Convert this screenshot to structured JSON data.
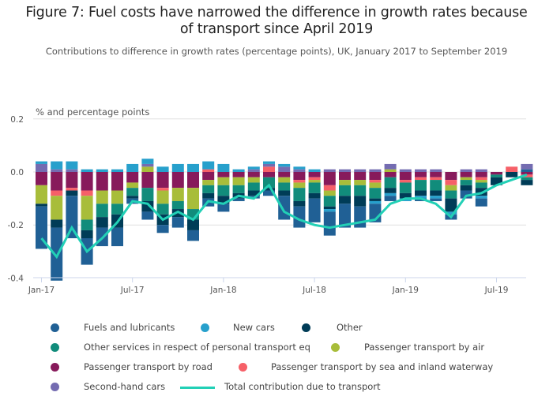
{
  "header": {
    "title_line1": "Figure 7: Fuel costs have narrowed the difference in growth rates because",
    "title_line2": "of transport since April 2019",
    "subtitle": "Contributions to difference in growth rates (percentage points), UK, January 2017 to September 2019"
  },
  "chart_data": {
    "type": "bar",
    "stacked": true,
    "title": "Figure 7: Fuel costs have narrowed the difference in growth rates because of transport since April 2019",
    "subtitle": "Contributions to difference in growth rates (percentage points), UK, January 2017 to September 2019",
    "ylabel": "% and percentage points",
    "xlabel": "",
    "ylim": [
      -0.4,
      0.2
    ],
    "yticks": [
      0.2,
      0.0,
      -0.2,
      -0.4
    ],
    "ytick_labels": [
      "0.2",
      "0.0",
      "-0.2",
      "-0.4"
    ],
    "grid": true,
    "legend_position": "bottom",
    "categories": [
      "Jan-17",
      "Feb-17",
      "Mar-17",
      "Apr-17",
      "May-17",
      "Jun-17",
      "Jul-17",
      "Aug-17",
      "Sep-17",
      "Oct-17",
      "Nov-17",
      "Dec-17",
      "Jan-18",
      "Feb-18",
      "Mar-18",
      "Apr-18",
      "May-18",
      "Jun-18",
      "Jul-18",
      "Aug-18",
      "Sep-18",
      "Oct-18",
      "Nov-18",
      "Dec-18",
      "Jan-19",
      "Feb-19",
      "Mar-19",
      "Apr-19",
      "May-19",
      "Jun-19",
      "Jul-19",
      "Aug-19",
      "Sep-19"
    ],
    "xtick_labels": [
      {
        "index": 0,
        "label": "Jan-17"
      },
      {
        "index": 6,
        "label": "Jul-17"
      },
      {
        "index": 12,
        "label": "Jan-18"
      },
      {
        "index": 18,
        "label": "Jul-18"
      },
      {
        "index": 24,
        "label": "Jan-19"
      },
      {
        "index": 30,
        "label": "Jul-19"
      }
    ],
    "series": [
      {
        "name": "Fuels and lubricants",
        "color": "#206095",
        "kind": "bar",
        "values": [
          -0.16,
          -0.2,
          -0.16,
          -0.1,
          -0.07,
          -0.07,
          -0.02,
          -0.03,
          -0.03,
          -0.04,
          -0.04,
          -0.03,
          -0.03,
          -0.01,
          -0.01,
          -0.02,
          -0.09,
          -0.08,
          -0.09,
          -0.09,
          -0.09,
          -0.08,
          -0.07,
          -0.02,
          0,
          -0.01,
          -0.01,
          -0.02,
          -0.03,
          -0.03,
          0,
          0,
          0.01
        ]
      },
      {
        "name": "New cars",
        "color": "#27a0cc",
        "kind": "bar",
        "values": [
          0.01,
          0.03,
          0.03,
          0.01,
          0.01,
          0.01,
          0.03,
          0.02,
          0.02,
          0.03,
          0.03,
          0.03,
          0.03,
          0.01,
          0.01,
          0.01,
          0.01,
          0.01,
          0.01,
          -0.01,
          0,
          0,
          -0.01,
          -0.01,
          -0.01,
          -0.01,
          -0.01,
          -0.01,
          0,
          -0.01,
          0,
          0,
          0
        ]
      },
      {
        "name": "Other",
        "color": "#003c57",
        "kind": "bar",
        "values": [
          -0.01,
          -0.03,
          -0.02,
          -0.03,
          -0.04,
          -0.05,
          -0.01,
          -0.04,
          -0.04,
          -0.03,
          -0.04,
          -0.02,
          -0.03,
          -0.02,
          -0.02,
          -0.01,
          -0.02,
          -0.02,
          -0.02,
          -0.01,
          -0.03,
          -0.04,
          -0.01,
          -0.02,
          -0.02,
          -0.02,
          -0.02,
          -0.05,
          -0.02,
          -0.03,
          -0.03,
          -0.02,
          -0.02
        ]
      },
      {
        "name": "Other services in respect of personal transport eq",
        "color": "#118c7b",
        "kind": "bar",
        "values": [
          0,
          0,
          0,
          -0.04,
          -0.05,
          -0.04,
          -0.03,
          -0.05,
          -0.04,
          -0.03,
          -0.04,
          -0.03,
          -0.04,
          -0.03,
          -0.03,
          -0.04,
          -0.03,
          -0.05,
          -0.04,
          -0.04,
          -0.04,
          -0.04,
          -0.04,
          -0.04,
          -0.04,
          -0.04,
          -0.04,
          -0.03,
          -0.02,
          -0.02,
          -0.01,
          0,
          -0.01
        ]
      },
      {
        "name": "Passenger transport by air",
        "color": "#a8bd3a",
        "kind": "bar",
        "values": [
          -0.07,
          -0.09,
          0,
          -0.09,
          -0.05,
          -0.05,
          -0.02,
          0.02,
          -0.05,
          -0.05,
          -0.08,
          -0.02,
          -0.03,
          -0.03,
          -0.02,
          0,
          -0.02,
          -0.02,
          -0.01,
          -0.02,
          -0.02,
          -0.02,
          -0.02,
          0.01,
          0,
          0,
          0,
          -0.02,
          -0.01,
          -0.01,
          0,
          0,
          0
        ]
      },
      {
        "name": "Passenger transport by road",
        "color": "#871a5b",
        "kind": "bar",
        "values": [
          -0.05,
          -0.07,
          -0.06,
          -0.07,
          -0.07,
          -0.07,
          -0.04,
          -0.06,
          -0.06,
          -0.06,
          -0.06,
          -0.03,
          -0.02,
          -0.02,
          -0.02,
          -0.02,
          -0.02,
          -0.03,
          -0.02,
          -0.05,
          -0.03,
          -0.03,
          -0.03,
          -0.02,
          -0.03,
          -0.02,
          -0.02,
          -0.03,
          -0.02,
          -0.02,
          -0.01,
          0,
          -0.01
        ]
      },
      {
        "name": "Passenger transport by sea and inland waterway",
        "color": "#f66068",
        "kind": "bar",
        "values": [
          0,
          -0.02,
          -0.01,
          -0.02,
          0,
          0,
          0,
          0,
          -0.01,
          0,
          0,
          0.01,
          0,
          0,
          0,
          0.02,
          0,
          -0.01,
          -0.01,
          -0.02,
          0,
          0,
          -0.01,
          0,
          -0.01,
          -0.01,
          -0.01,
          -0.02,
          0,
          -0.01,
          0,
          0.02,
          -0.01
        ]
      },
      {
        "name": "Second-hand cars",
        "color": "#746cb1",
        "kind": "bar",
        "values": [
          0.03,
          0.01,
          0.01,
          0,
          0,
          0,
          0,
          0.01,
          0,
          0,
          0,
          0,
          0,
          0,
          0.01,
          0.01,
          0.02,
          0.01,
          0,
          0.01,
          0.01,
          0.01,
          0.01,
          0.02,
          0.01,
          0.01,
          0.01,
          0,
          0.01,
          0.01,
          0,
          0,
          0.02
        ]
      },
      {
        "name": "Total contribution due to transport",
        "color": "#22d0b6",
        "kind": "line",
        "values": [
          -0.25,
          -0.32,
          -0.21,
          -0.3,
          -0.25,
          -0.19,
          -0.11,
          -0.12,
          -0.18,
          -0.15,
          -0.18,
          -0.11,
          -0.12,
          -0.09,
          -0.1,
          -0.05,
          -0.15,
          -0.18,
          -0.2,
          -0.21,
          -0.2,
          -0.19,
          -0.18,
          -0.12,
          -0.1,
          -0.1,
          -0.12,
          -0.17,
          -0.09,
          -0.08,
          -0.05,
          -0.03,
          -0.01
        ]
      }
    ]
  }
}
